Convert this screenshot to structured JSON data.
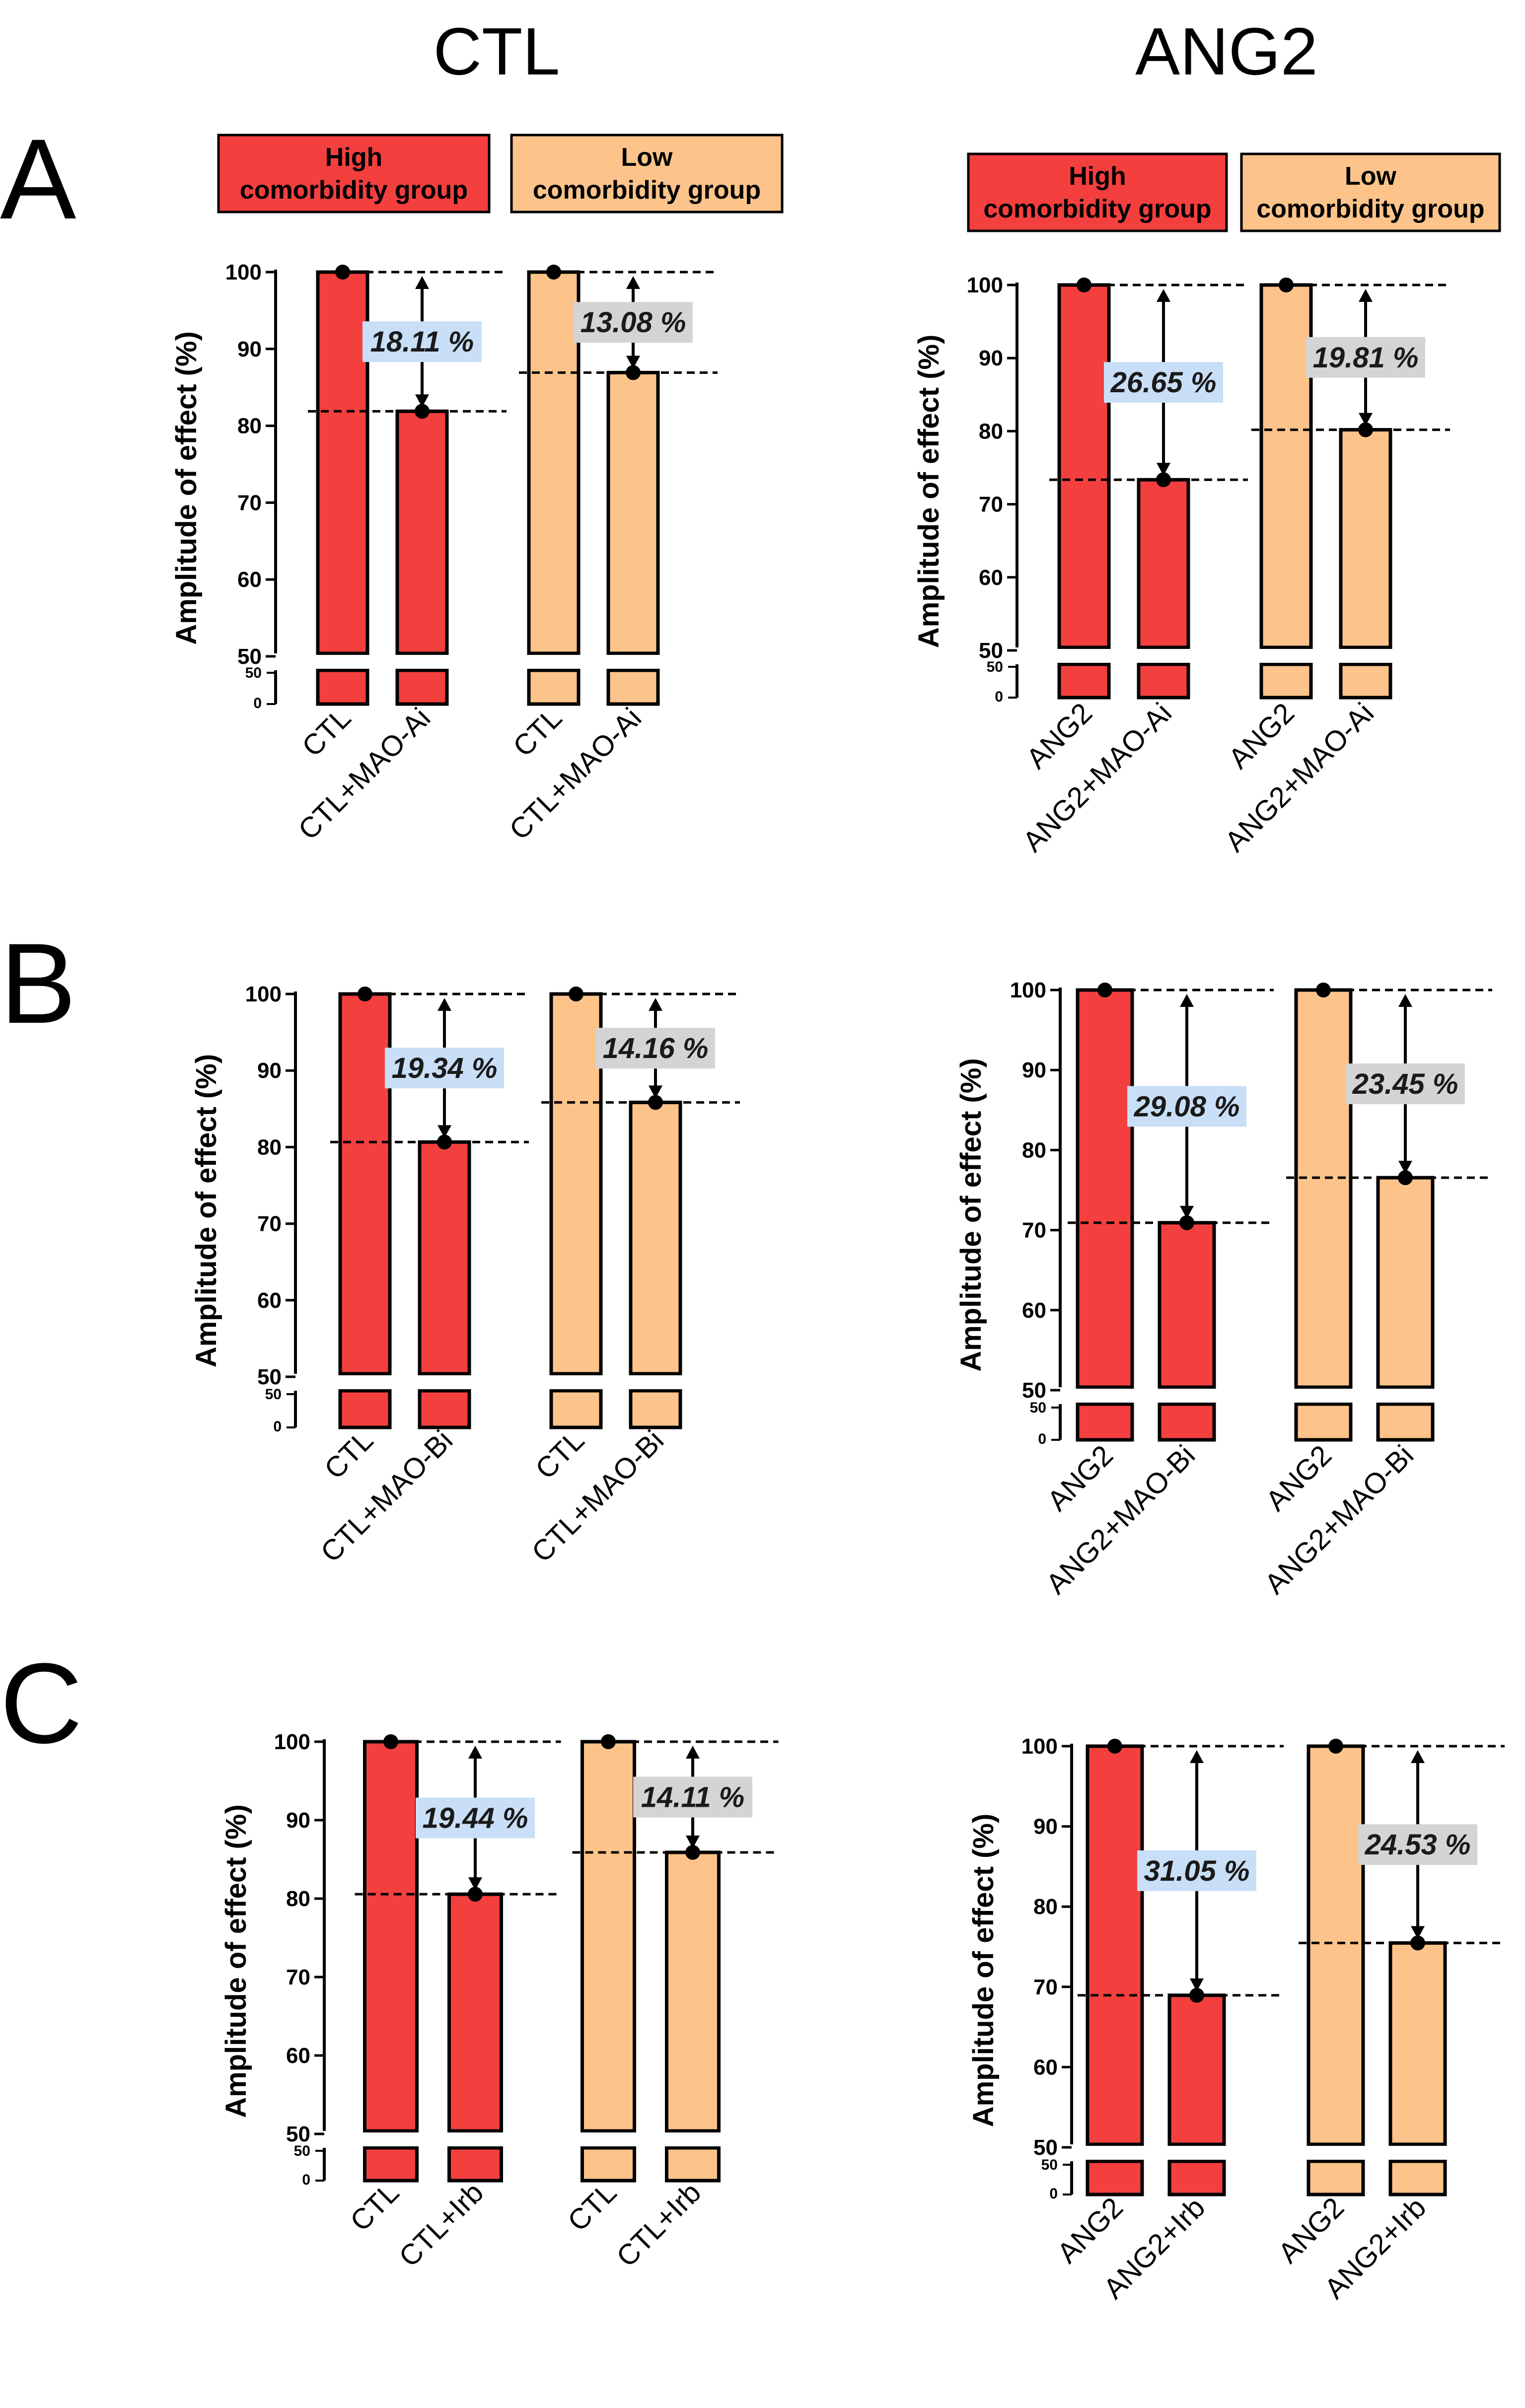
{
  "column_titles": [
    "CTL",
    "ANG2"
  ],
  "row_labels": [
    "A",
    "B",
    "C"
  ],
  "legend": {
    "high": {
      "line1": "High",
      "line2": "comorbidity group",
      "color": "#f43f3f"
    },
    "low": {
      "line1": "Low",
      "line2": "comorbidity group",
      "color": "#fcc48a"
    }
  },
  "colors": {
    "high_bar": "#f43f3f",
    "low_bar": "#fcc48a",
    "high_label_bg": "#c9def7",
    "low_label_bg": "#d4d4d4"
  },
  "chart_data": [
    {
      "id": "A-CTL",
      "type": "bar",
      "ylabel": "Amplitude of effect (%)",
      "ylim": [
        50,
        100
      ],
      "yticks": [
        50,
        60,
        70,
        80,
        90,
        100
      ],
      "broken_axis_ticks": [
        50,
        0
      ],
      "categories": [
        "CTL",
        "CTL+MAO-Ai",
        "CTL",
        "CTL+MAO-Ai"
      ],
      "groups": [
        "high",
        "high",
        "low",
        "low"
      ],
      "values": [
        100,
        81.89,
        100,
        86.92
      ],
      "differences": [
        {
          "group": "high",
          "label": "18.11 %"
        },
        {
          "group": "low",
          "label": "13.08 %"
        }
      ]
    },
    {
      "id": "A-ANG2",
      "type": "bar",
      "ylabel": "Amplitude of effect (%)",
      "ylim": [
        50,
        100
      ],
      "yticks": [
        50,
        60,
        70,
        80,
        90,
        100
      ],
      "broken_axis_ticks": [
        50,
        0
      ],
      "categories": [
        "ANG2",
        "ANG2+MAO-Ai",
        "ANG2",
        "ANG2+MAO-Ai"
      ],
      "groups": [
        "high",
        "high",
        "low",
        "low"
      ],
      "values": [
        100,
        73.35,
        100,
        80.19
      ],
      "differences": [
        {
          "group": "high",
          "label": "26.65 %"
        },
        {
          "group": "low",
          "label": "19.81 %"
        }
      ]
    },
    {
      "id": "B-CTL",
      "type": "bar",
      "ylabel": "Amplitude of effect (%)",
      "ylim": [
        50,
        100
      ],
      "yticks": [
        50,
        60,
        70,
        80,
        90,
        100
      ],
      "broken_axis_ticks": [
        50,
        0
      ],
      "categories": [
        "CTL",
        "CTL+MAO-Bi",
        "CTL",
        "CTL+MAO-Bi"
      ],
      "groups": [
        "high",
        "high",
        "low",
        "low"
      ],
      "values": [
        100,
        80.66,
        100,
        85.84
      ],
      "differences": [
        {
          "group": "high",
          "label": "19.34 %"
        },
        {
          "group": "low",
          "label": "14.16 %"
        }
      ]
    },
    {
      "id": "B-ANG2",
      "type": "bar",
      "ylabel": "Amplitude of effect (%)",
      "ylim": [
        50,
        100
      ],
      "yticks": [
        50,
        60,
        70,
        80,
        90,
        100
      ],
      "broken_axis_ticks": [
        50,
        0
      ],
      "categories": [
        "ANG2",
        "ANG2+MAO-Bi",
        "ANG2",
        "ANG2+MAO-Bi"
      ],
      "groups": [
        "high",
        "high",
        "low",
        "low"
      ],
      "values": [
        100,
        70.92,
        100,
        76.55
      ],
      "differences": [
        {
          "group": "high",
          "label": "29.08 %"
        },
        {
          "group": "low",
          "label": "23.45 %"
        }
      ]
    },
    {
      "id": "C-CTL",
      "type": "bar",
      "ylabel": "Amplitude of effect (%)",
      "ylim": [
        50,
        100
      ],
      "yticks": [
        50,
        60,
        70,
        80,
        90,
        100
      ],
      "broken_axis_ticks": [
        50,
        0
      ],
      "categories": [
        "CTL",
        "CTL+Irb",
        "CTL",
        "CTL+Irb"
      ],
      "groups": [
        "high",
        "high",
        "low",
        "low"
      ],
      "values": [
        100,
        80.56,
        100,
        85.89
      ],
      "differences": [
        {
          "group": "high",
          "label": "19.44 %"
        },
        {
          "group": "low",
          "label": "14.11 %"
        }
      ]
    },
    {
      "id": "C-ANG2",
      "type": "bar",
      "ylabel": "Amplitude of effect (%)",
      "ylim": [
        50,
        100
      ],
      "yticks": [
        50,
        60,
        70,
        80,
        90,
        100
      ],
      "broken_axis_ticks": [
        50,
        0
      ],
      "categories": [
        "ANG2",
        "ANG2+Irb",
        "ANG2",
        "ANG2+Irb"
      ],
      "groups": [
        "high",
        "high",
        "low",
        "low"
      ],
      "values": [
        100,
        68.95,
        100,
        75.47
      ],
      "differences": [
        {
          "group": "high",
          "label": "31.05 %"
        },
        {
          "group": "low",
          "label": "24.53 %"
        }
      ]
    }
  ]
}
